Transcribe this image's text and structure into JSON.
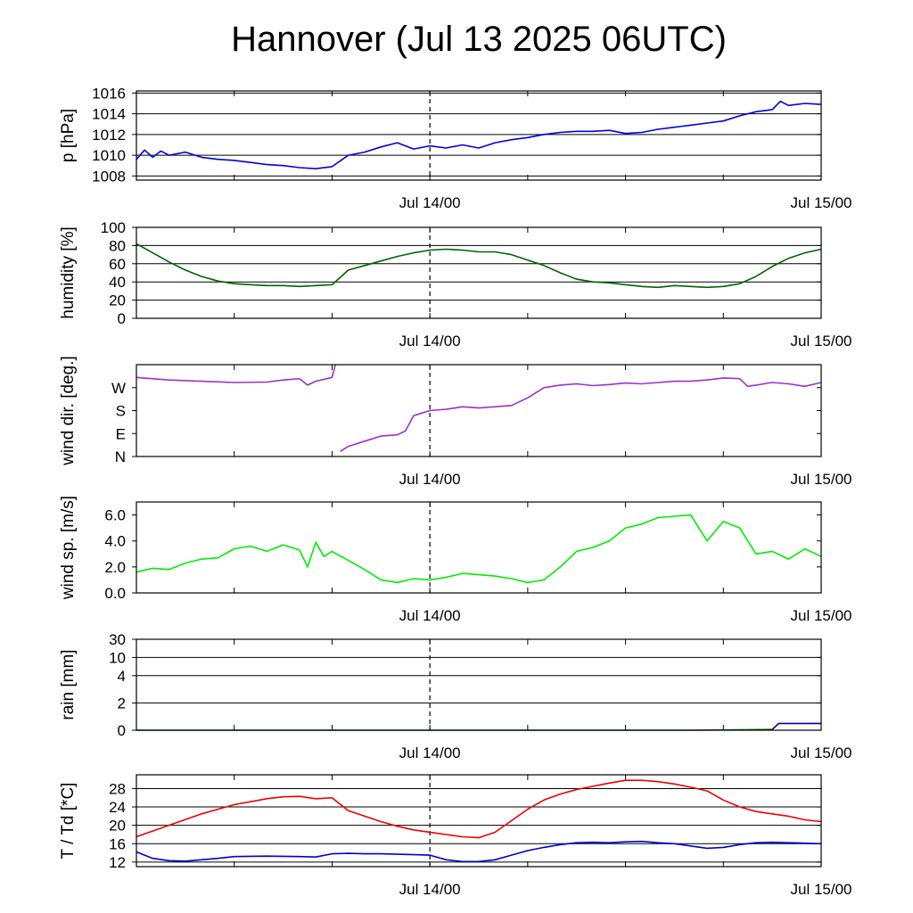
{
  "title": "Hannover (Jul 13 2025 06UTC)",
  "time_axis": {
    "start": "2025-07-13T06:00Z",
    "end": "2025-07-15T00:00Z",
    "labels": [
      "Jul 14/00",
      "Jul 15/00"
    ],
    "label_times_h": [
      18,
      42
    ],
    "marker_h": 18
  },
  "chart_data": [
    {
      "type": "line",
      "ylabel": "p [hPa]",
      "ylim": [
        1007.6,
        1016.2
      ],
      "yticks": [
        1008,
        1010,
        1012,
        1014,
        1016
      ],
      "yticklabels": [
        "1008",
        "1010",
        "1012",
        "1014",
        "1016"
      ],
      "grid": true,
      "x_unit": "hours since Jul 13 06UTC",
      "series": [
        {
          "color": "#0000dd",
          "x": [
            0,
            0.5,
            1,
            1.5,
            2,
            3,
            4,
            5,
            6,
            7,
            8,
            9,
            10,
            11,
            12,
            13,
            14,
            15,
            16,
            17,
            18,
            19,
            20,
            21,
            22,
            23,
            24,
            25,
            26,
            27,
            28,
            29,
            30,
            31,
            32,
            33,
            34,
            35,
            36,
            37,
            38,
            39,
            39.5,
            40,
            41,
            42
          ],
          "y": [
            1009.6,
            1010.5,
            1009.8,
            1010.4,
            1010.0,
            1010.3,
            1009.8,
            1009.6,
            1009.5,
            1009.3,
            1009.1,
            1009.0,
            1008.8,
            1008.7,
            1008.9,
            1010.0,
            1010.3,
            1010.8,
            1011.2,
            1010.6,
            1010.9,
            1010.7,
            1011.0,
            1010.7,
            1011.2,
            1011.5,
            1011.7,
            1012.0,
            1012.2,
            1012.3,
            1012.3,
            1012.4,
            1012.1,
            1012.2,
            1012.5,
            1012.7,
            1012.9,
            1013.1,
            1013.3,
            1013.8,
            1014.2,
            1014.4,
            1015.2,
            1014.8,
            1015.0,
            1014.9
          ]
        }
      ]
    },
    {
      "type": "line",
      "ylabel": "humidity [%]",
      "ylim": [
        0,
        100
      ],
      "yticks": [
        0,
        20,
        40,
        60,
        80,
        100
      ],
      "yticklabels": [
        "0",
        "20",
        "40",
        "60",
        "80",
        "100"
      ],
      "grid": true,
      "x_unit": "hours since Jul 13 06UTC",
      "series": [
        {
          "color": "#006400",
          "x": [
            0,
            1,
            2,
            3,
            4,
            5,
            6,
            7,
            8,
            9,
            10,
            11,
            12,
            12.5,
            13,
            14,
            15,
            16,
            17,
            18,
            19,
            20,
            21,
            22,
            23,
            24,
            25,
            26,
            27,
            28,
            29,
            30,
            31,
            32,
            33,
            34,
            35,
            36,
            37,
            38,
            39,
            40,
            41,
            42
          ],
          "y": [
            82,
            72,
            62,
            53,
            46,
            41,
            38,
            37,
            36,
            36,
            35,
            36,
            37,
            45,
            53,
            58,
            63,
            68,
            72,
            75,
            76,
            75,
            73,
            73,
            70,
            64,
            58,
            50,
            43,
            40,
            39,
            37,
            35,
            34,
            36,
            35,
            34,
            35,
            38,
            46,
            57,
            66,
            72,
            76
          ]
        }
      ]
    },
    {
      "type": "line",
      "ylabel": "wind dir. [deg.]",
      "ylim": [
        0,
        360
      ],
      "yticks": [
        0,
        90,
        180,
        270
      ],
      "yticklabels": [
        "N",
        "E",
        "S",
        "W"
      ],
      "grid": false,
      "x_unit": "hours since Jul 13 06UTC",
      "series": [
        {
          "color": "#9932cc",
          "segments": [
            {
              "x": [
                0,
                2,
                4,
                6,
                8,
                9,
                10,
                10.5,
                11,
                12,
                12.2
              ],
              "y": [
                310,
                300,
                295,
                290,
                292,
                300,
                305,
                280,
                295,
                310,
                360
              ]
            },
            {
              "x": [
                12.5,
                13,
                14,
                15,
                16,
                16.5,
                17,
                18,
                19,
                20,
                21,
                22,
                23,
                24,
                25,
                26,
                27,
                28,
                29,
                30,
                31,
                32,
                33,
                34,
                35,
                36,
                37,
                37.5,
                38,
                39,
                40,
                41,
                42
              ],
              "y": [
                20,
                40,
                60,
                80,
                85,
                100,
                160,
                180,
                185,
                195,
                190,
                195,
                200,
                230,
                270,
                280,
                285,
                278,
                282,
                288,
                285,
                290,
                295,
                295,
                300,
                308,
                305,
                275,
                280,
                290,
                285,
                275,
                290
              ]
            }
          ]
        }
      ]
    },
    {
      "type": "line",
      "ylabel": "wind sp. [m/s]",
      "ylim": [
        0,
        7
      ],
      "yticks": [
        0,
        2,
        4,
        6
      ],
      "yticklabels": [
        "0.0",
        "2.0",
        "4.0",
        "6.0"
      ],
      "grid": false,
      "x_unit": "hours since Jul 13 06UTC",
      "series": [
        {
          "color": "#00ee00",
          "x": [
            0,
            1,
            2,
            3,
            4,
            5,
            6,
            7,
            8,
            9,
            10,
            10.5,
            11,
            11.5,
            12,
            13,
            14,
            15,
            16,
            17,
            18,
            19,
            20,
            21,
            22,
            23,
            24,
            25,
            26,
            27,
            28,
            29,
            30,
            31,
            32,
            33,
            34,
            35,
            36,
            37,
            38,
            39,
            40,
            41,
            42
          ],
          "y": [
            1.6,
            1.9,
            1.8,
            2.3,
            2.6,
            2.7,
            3.4,
            3.6,
            3.2,
            3.7,
            3.3,
            2.0,
            3.9,
            2.8,
            3.2,
            2.5,
            1.8,
            1.0,
            0.8,
            1.1,
            1.0,
            1.2,
            1.5,
            1.4,
            1.3,
            1.1,
            0.8,
            1.0,
            2.0,
            3.2,
            3.5,
            4.0,
            5.0,
            5.3,
            5.8,
            5.9,
            6.0,
            4.0,
            5.5,
            5.0,
            3.0,
            3.2,
            2.6,
            3.4,
            2.8
          ]
        }
      ]
    },
    {
      "type": "line",
      "ylabel": "rain [mm]",
      "ylim": [
        0,
        30
      ],
      "yticks": [
        0,
        2,
        4,
        10,
        30
      ],
      "yticklabels": [
        "0",
        "2",
        "4",
        "10",
        "30"
      ],
      "scale": "nonlinear",
      "grid": true,
      "x_unit": "hours since Jul 13 06UTC",
      "series": [
        {
          "color": "#006400",
          "x": [
            0,
            34,
            39
          ],
          "y": [
            0,
            0,
            0.05
          ]
        },
        {
          "color": "#0000aa",
          "x": [
            39,
            39.4,
            40,
            42
          ],
          "y": [
            0.05,
            0.5,
            0.5,
            0.5
          ]
        }
      ]
    },
    {
      "type": "line",
      "ylabel": "T / Td [*C]",
      "ylim": [
        11,
        31
      ],
      "yticks": [
        12,
        16,
        20,
        24,
        28
      ],
      "yticklabels": [
        "12",
        "16",
        "20",
        "24",
        "28"
      ],
      "grid": true,
      "x_unit": "hours since Jul 13 06UTC",
      "series": [
        {
          "name": "T",
          "color": "#ee0000",
          "x": [
            0,
            2,
            4,
            6,
            8,
            9,
            10,
            11,
            12,
            13,
            14,
            15,
            16,
            17,
            18,
            19,
            20,
            21,
            22,
            23,
            24,
            25,
            26,
            27,
            28,
            29,
            30,
            31,
            32,
            33,
            34,
            35,
            36,
            37,
            38,
            39,
            40,
            41,
            42
          ],
          "y": [
            17.5,
            20,
            22.5,
            24.5,
            25.8,
            26.2,
            26.3,
            25.8,
            26.0,
            23.2,
            22.0,
            20.8,
            19.8,
            19.0,
            18.5,
            18.0,
            17.5,
            17.3,
            18.5,
            21.0,
            23.5,
            25.5,
            26.8,
            27.8,
            28.5,
            29.2,
            29.8,
            29.8,
            29.5,
            29.0,
            28.3,
            27.5,
            25.5,
            24.0,
            23.0,
            22.5,
            22.0,
            21.2,
            20.8
          ]
        },
        {
          "name": "Td",
          "color": "#0000cc",
          "x": [
            0,
            1,
            2,
            3,
            4,
            5,
            6,
            8,
            10,
            11,
            12,
            13,
            14,
            15,
            16,
            17,
            18,
            19,
            20,
            21,
            22,
            23,
            24,
            25,
            26,
            27,
            28,
            29,
            30,
            31,
            32,
            33,
            34,
            35,
            36,
            37,
            38,
            39,
            40,
            41,
            42
          ],
          "y": [
            14.2,
            12.8,
            12.3,
            12.2,
            12.5,
            12.8,
            13.2,
            13.3,
            13.2,
            13.1,
            13.8,
            13.9,
            13.8,
            13.8,
            13.7,
            13.6,
            13.5,
            12.5,
            12.1,
            12.1,
            12.5,
            13.5,
            14.5,
            15.2,
            15.8,
            16.2,
            16.3,
            16.2,
            16.4,
            16.5,
            16.2,
            16.0,
            15.5,
            15.0,
            15.2,
            15.8,
            16.2,
            16.3,
            16.2,
            16.1,
            16.0
          ]
        }
      ]
    }
  ]
}
